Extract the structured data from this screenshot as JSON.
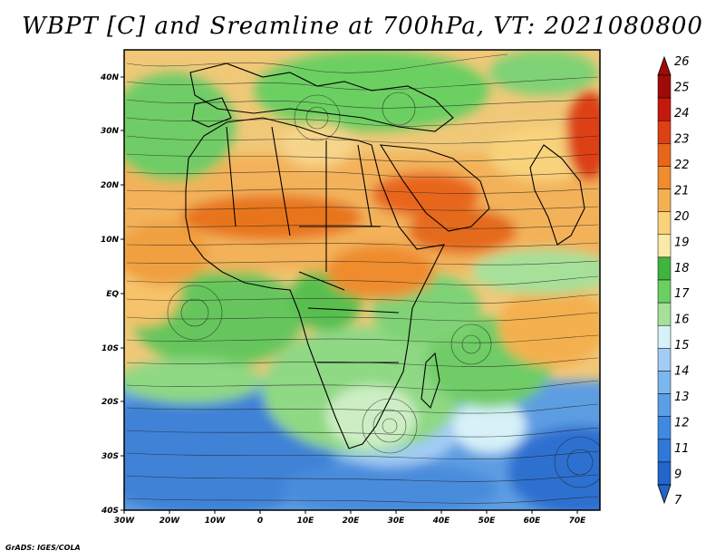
{
  "title": "WBPT [C] and Sreamline at 700hPa, VT: 2021080800",
  "footer": "GrADS: IGES/COLA",
  "map": {
    "lon_labels": [
      "30W",
      "20W",
      "10W",
      "0",
      "10E",
      "20E",
      "30E",
      "40E",
      "50E",
      "60E",
      "70E"
    ],
    "lat_labels": [
      "40N",
      "30N",
      "20N",
      "10N",
      "EQ",
      "10S",
      "20S",
      "30S",
      "40S"
    ]
  },
  "colorbar": {
    "labels": [
      "7",
      "9",
      "11",
      "12",
      "13",
      "14",
      "15",
      "16",
      "17",
      "18",
      "19",
      "20",
      "21",
      "22",
      "23",
      "24",
      "25",
      "26"
    ],
    "colors": [
      "#2166c8",
      "#2e78d8",
      "#3f8ae0",
      "#5a9fe6",
      "#7cb6ee",
      "#a2ccf4",
      "#d6f1f8",
      "#a6e09a",
      "#6ccf62",
      "#3fb43f",
      "#fbe9a8",
      "#f8d37c",
      "#f4b050",
      "#ef8c2e",
      "#e8661c",
      "#dd4014",
      "#c41a0e",
      "#a00a08"
    ]
  }
}
